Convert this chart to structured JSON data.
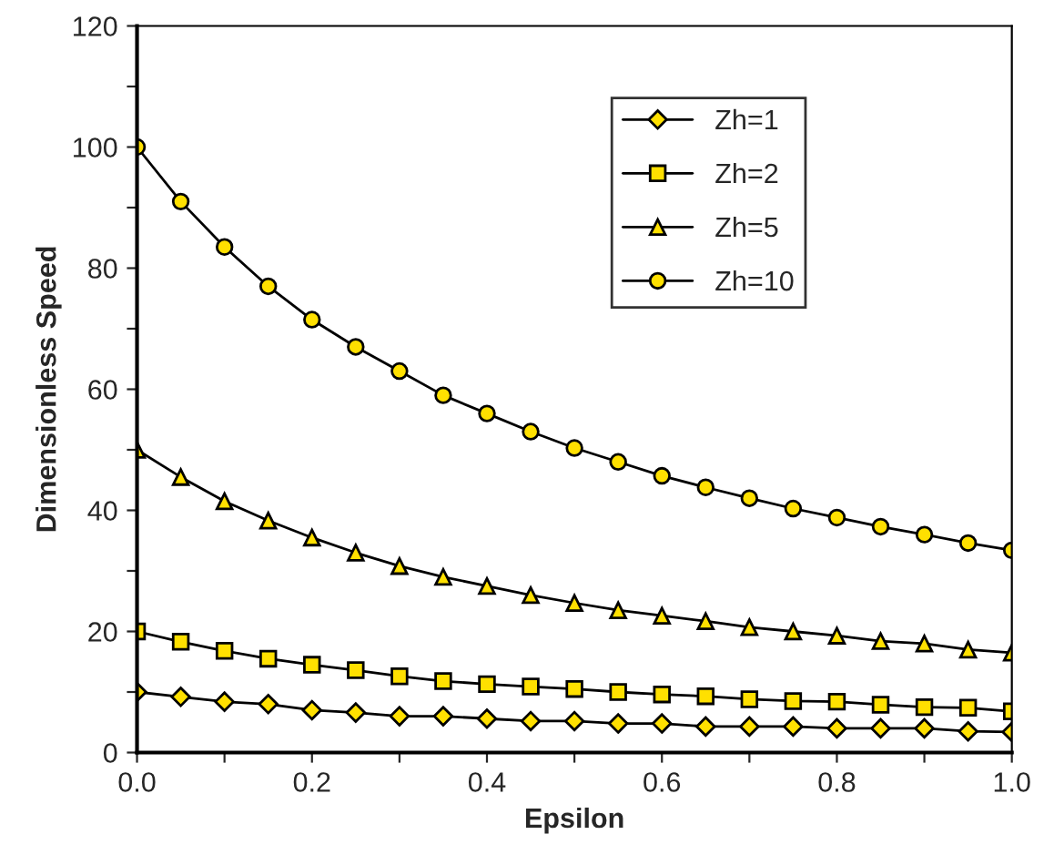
{
  "chart_data": {
    "type": "line",
    "xlabel": "Epsilon",
    "ylabel": "Dimensionless Speed",
    "x": [
      0,
      0.05,
      0.1,
      0.15,
      0.2,
      0.25,
      0.3,
      0.35,
      0.4,
      0.45,
      0.5,
      0.55,
      0.6,
      0.65,
      0.7,
      0.75,
      0.8,
      0.85,
      0.9,
      0.95,
      1.0
    ],
    "series": [
      {
        "name": "Zh=1",
        "color": "#ffe000",
        "marker": "diamond",
        "values": [
          10,
          9.2,
          8.4,
          8,
          7,
          6.6,
          6,
          6,
          5.6,
          5.2,
          5.2,
          4.8,
          4.8,
          4.3,
          4.3,
          4.3,
          4,
          4,
          4,
          3.5,
          3.4
        ]
      },
      {
        "name": "Zh=2",
        "color": "#ffe000",
        "marker": "square",
        "values": [
          20,
          18.3,
          16.8,
          15.5,
          14.5,
          13.6,
          12.6,
          11.8,
          11.3,
          10.9,
          10.5,
          10,
          9.6,
          9.3,
          8.8,
          8.5,
          8.4,
          7.9,
          7.5,
          7.4,
          6.8
        ]
      },
      {
        "name": "Zh=5",
        "color": "#ffe000",
        "marker": "triangle",
        "values": [
          50,
          45.5,
          41.5,
          38.3,
          35.5,
          33,
          30.8,
          29,
          27.5,
          26,
          24.7,
          23.5,
          22.6,
          21.7,
          20.7,
          20,
          19.3,
          18.4,
          18,
          17,
          16.5
        ]
      },
      {
        "name": "Zh=10",
        "color": "#ffe000",
        "marker": "circle",
        "values": [
          100,
          91,
          83.5,
          77,
          71.5,
          67,
          63,
          59,
          56,
          53,
          50.3,
          48,
          45.7,
          43.8,
          42,
          40.3,
          38.8,
          37.3,
          36,
          34.6,
          33.4
        ]
      }
    ],
    "xlim": [
      0,
      1.0
    ],
    "ylim": [
      0,
      120
    ],
    "xticks": [
      {
        "value": 0,
        "label": "0.0"
      },
      {
        "value": 0.1,
        "label": null
      },
      0.2,
      {
        "value": 0.3,
        "label": null
      },
      0.4,
      {
        "value": 0.5,
        "label": null
      },
      0.6,
      {
        "value": 0.7,
        "label": null
      },
      0.8,
      {
        "value": 0.9,
        "label": null
      },
      {
        "value": 1.0,
        "label": "1.0"
      }
    ],
    "yticks": [
      0,
      {
        "value": 10,
        "label": null
      },
      20,
      {
        "value": 30,
        "label": null
      },
      40,
      {
        "value": 50,
        "label": null
      },
      60,
      {
        "value": 70,
        "label": null
      },
      80,
      {
        "value": 90,
        "label": null
      },
      100,
      {
        "value": 110,
        "label": null
      },
      120
    ],
    "grid": false,
    "legend": "top right",
    "line_style": "solid"
  }
}
